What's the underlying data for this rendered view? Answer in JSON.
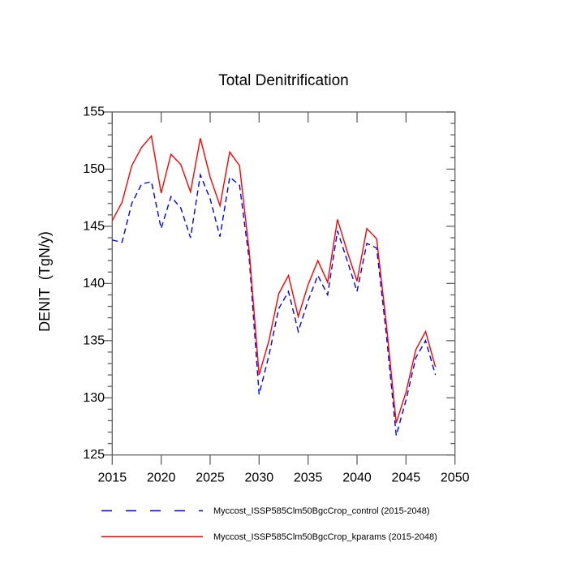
{
  "chart_data": {
    "type": "line",
    "title": "Total Denitrification",
    "ylabel": "DENIT  (TgN/y)",
    "xlim": [
      2015,
      2050
    ],
    "ylim": [
      125,
      155
    ],
    "xticks": [
      2015,
      2020,
      2025,
      2030,
      2035,
      2040,
      2045,
      2050
    ],
    "yticks_major": [
      125,
      130,
      135,
      140,
      145,
      150,
      155
    ],
    "y_minor_step": 1,
    "grid": false,
    "legend_position": "bottom",
    "axis_color": "#606060",
    "x": [
      2015,
      2016,
      2017,
      2018,
      2019,
      2020,
      2021,
      2022,
      2023,
      2024,
      2025,
      2026,
      2027,
      2028,
      2029,
      2030,
      2031,
      2032,
      2033,
      2034,
      2035,
      2036,
      2037,
      2038,
      2039,
      2040,
      2041,
      2042,
      2043,
      2044,
      2045,
      2046,
      2047,
      2048
    ],
    "series": [
      {
        "name": "Myccost_ISSP585Clm50BgcCrop_control (2015-2048)",
        "color": "#0000ff",
        "style": "dashed",
        "values": [
          143.8,
          143.6,
          147.0,
          148.7,
          148.9,
          144.8,
          147.6,
          146.6,
          144.0,
          149.5,
          147.4,
          144.1,
          149.3,
          148.6,
          142.0,
          130.3,
          133.7,
          137.8,
          139.3,
          135.8,
          138.5,
          140.7,
          139.0,
          144.6,
          142.0,
          139.3,
          143.5,
          143.1,
          135.5,
          126.7,
          129.8,
          133.5,
          135.0,
          132.0
        ]
      },
      {
        "name": "Myccost_ISSP585Clm50BgcCrop_kparams (2015-2048)",
        "color": "#ff0000",
        "style": "solid",
        "values": [
          145.5,
          147.1,
          150.3,
          151.9,
          152.9,
          147.9,
          151.3,
          150.4,
          148.0,
          152.7,
          149.3,
          146.8,
          151.5,
          150.3,
          142.7,
          132.0,
          135.0,
          139.1,
          140.7,
          137.1,
          139.9,
          142.0,
          140.1,
          145.6,
          142.8,
          140.2,
          144.8,
          143.9,
          136.4,
          127.8,
          130.5,
          134.2,
          135.8,
          132.7
        ]
      }
    ]
  }
}
